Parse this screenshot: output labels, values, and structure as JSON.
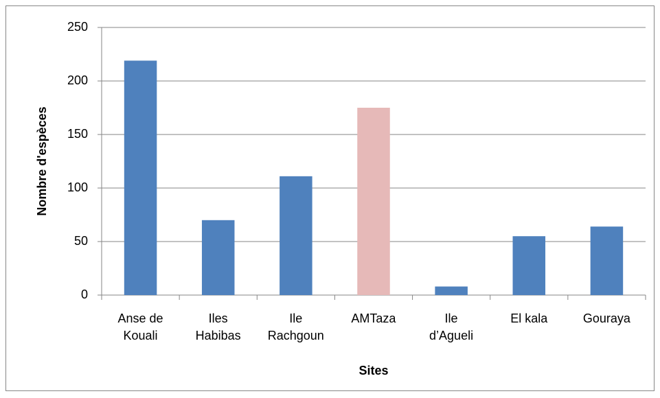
{
  "chart_data": {
    "type": "bar",
    "categories": [
      "Anse de\nKouali",
      "Iles\nHabibas",
      "Ile\nRachgoun",
      "AMTaza",
      "Ile\nd’Agueli",
      "El kala",
      "Gouraya"
    ],
    "values": [
      219,
      70,
      111,
      175,
      8,
      55,
      64
    ],
    "colors": [
      "#4f81bd",
      "#4f81bd",
      "#4f81bd",
      "#e6b9b8",
      "#4f81bd",
      "#4f81bd",
      "#4f81bd"
    ],
    "ylim": [
      0,
      250
    ],
    "yticks": [
      0,
      50,
      100,
      150,
      200,
      250
    ],
    "grid": true,
    "x_label": "Sites",
    "y_label": "Nombre d'espèces"
  }
}
